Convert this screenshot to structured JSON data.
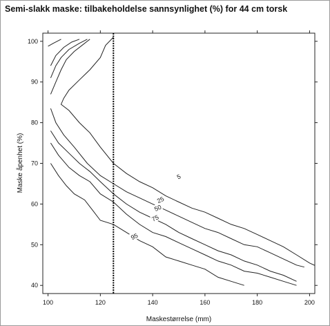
{
  "chart_data": {
    "type": "line",
    "subtype": "contour",
    "title": "Semi-slakk maske: tilbakeholdelse sannsynlighet (%) for 44 cm torsk",
    "xlabel": "Maskestørrelse (mm)",
    "ylabel": "Maske åpenhet (%)",
    "xlim": [
      98,
      202
    ],
    "ylim": [
      38,
      102
    ],
    "xticks": [
      100,
      120,
      140,
      160,
      180,
      200
    ],
    "yticks": [
      40,
      50,
      60,
      70,
      80,
      90,
      100
    ],
    "grid": false,
    "reference_line": {
      "x": 125,
      "style": "dotted"
    },
    "series": [
      {
        "name": "5",
        "label_at": [
          150,
          66.7
        ],
        "values": [
          [
            101,
            87
          ],
          [
            103,
            90
          ],
          [
            105,
            93
          ],
          [
            107,
            95.5
          ],
          [
            110,
            97.5
          ],
          [
            113,
            99
          ],
          [
            116,
            100.5
          ]
        ]
      },
      {
        "name": "",
        "values": [
          [
            101,
            91
          ],
          [
            103,
            94
          ],
          [
            105,
            96
          ],
          [
            108,
            98
          ],
          [
            112,
            99.5
          ],
          [
            115,
            100.5
          ]
        ]
      },
      {
        "name": "",
        "values": [
          [
            101,
            94
          ],
          [
            103,
            96.5
          ],
          [
            106,
            98.5
          ],
          [
            109,
            99.8
          ],
          [
            112,
            100.5
          ]
        ]
      },
      {
        "name": "",
        "values": [
          [
            100,
            98.8
          ],
          [
            102,
            99.5
          ],
          [
            105,
            100.5
          ]
        ]
      },
      {
        "name": "",
        "values": [
          [
            125,
            101
          ],
          [
            122,
            99
          ],
          [
            120,
            96
          ],
          [
            116,
            93
          ],
          [
            112,
            90.5
          ],
          [
            108,
            88
          ],
          [
            106,
            86
          ],
          [
            105,
            84.5
          ],
          [
            108,
            83
          ],
          [
            112,
            80
          ],
          [
            116,
            77.5
          ],
          [
            120,
            74
          ],
          [
            125,
            70
          ],
          [
            130,
            67.5
          ],
          [
            135,
            65.5
          ],
          [
            140,
            64
          ],
          [
            145,
            62
          ],
          [
            150,
            60.5
          ],
          [
            155,
            59
          ],
          [
            160,
            58
          ],
          [
            165,
            56.5
          ],
          [
            170,
            55
          ],
          [
            175,
            54
          ],
          [
            180,
            52.5
          ],
          [
            185,
            51
          ],
          [
            190,
            49.5
          ],
          [
            195,
            47.5
          ],
          [
            200,
            45.5
          ],
          [
            205,
            44
          ]
        ]
      },
      {
        "name": "25",
        "label_at": [
          143,
          61
        ],
        "values": [
          [
            101,
            83.5
          ],
          [
            103,
            80
          ],
          [
            106,
            77
          ],
          [
            110,
            74
          ],
          [
            115,
            70
          ],
          [
            120,
            67
          ],
          [
            125,
            65
          ],
          [
            130,
            63
          ],
          [
            135,
            61.5
          ],
          [
            140,
            60
          ],
          [
            145,
            58.5
          ],
          [
            150,
            57
          ],
          [
            155,
            55.5
          ],
          [
            160,
            54
          ],
          [
            165,
            53
          ],
          [
            170,
            51.5
          ],
          [
            175,
            50
          ],
          [
            180,
            49.5
          ],
          [
            185,
            48
          ],
          [
            190,
            46.5
          ],
          [
            195,
            45
          ],
          [
            198,
            44.5
          ]
        ]
      },
      {
        "name": "50",
        "label_at": [
          142,
          59
        ],
        "values": [
          [
            101,
            78
          ],
          [
            104,
            75
          ],
          [
            108,
            72.5
          ],
          [
            112,
            70
          ],
          [
            116,
            68
          ],
          [
            120,
            65.5
          ],
          [
            125,
            62.5
          ],
          [
            130,
            60
          ],
          [
            135,
            58
          ],
          [
            140,
            56.5
          ],
          [
            145,
            55
          ],
          [
            150,
            53
          ],
          [
            155,
            51.5
          ],
          [
            160,
            50
          ],
          [
            165,
            48.5
          ],
          [
            170,
            47.5
          ],
          [
            175,
            46
          ],
          [
            180,
            45
          ],
          [
            185,
            43.5
          ],
          [
            190,
            42.5
          ],
          [
            195,
            41
          ]
        ]
      },
      {
        "name": "75",
        "label_at": [
          141,
          56.5
        ],
        "values": [
          [
            101,
            75
          ],
          [
            104,
            72
          ],
          [
            108,
            69
          ],
          [
            112,
            67
          ],
          [
            116,
            65.5
          ],
          [
            120,
            62.5
          ],
          [
            125,
            60.5
          ],
          [
            130,
            57.5
          ],
          [
            135,
            55
          ],
          [
            140,
            53
          ],
          [
            145,
            52
          ],
          [
            150,
            50.5
          ],
          [
            155,
            49
          ],
          [
            160,
            47.5
          ],
          [
            165,
            46
          ],
          [
            170,
            45
          ],
          [
            175,
            43.5
          ],
          [
            180,
            43
          ],
          [
            185,
            42
          ],
          [
            190,
            41
          ],
          [
            195,
            40
          ]
        ]
      },
      {
        "name": "95",
        "label_at": [
          133,
          52
        ],
        "values": [
          [
            101,
            70
          ],
          [
            104,
            67
          ],
          [
            107,
            64.5
          ],
          [
            110,
            62.5
          ],
          [
            114,
            61
          ],
          [
            117,
            58.5
          ],
          [
            120,
            56
          ],
          [
            125,
            55
          ],
          [
            130,
            53
          ],
          [
            135,
            51
          ],
          [
            140,
            49.5
          ],
          [
            145,
            47
          ],
          [
            150,
            46
          ],
          [
            155,
            45
          ],
          [
            160,
            44
          ],
          [
            165,
            42
          ],
          [
            170,
            41
          ],
          [
            175,
            40
          ]
        ]
      }
    ]
  }
}
